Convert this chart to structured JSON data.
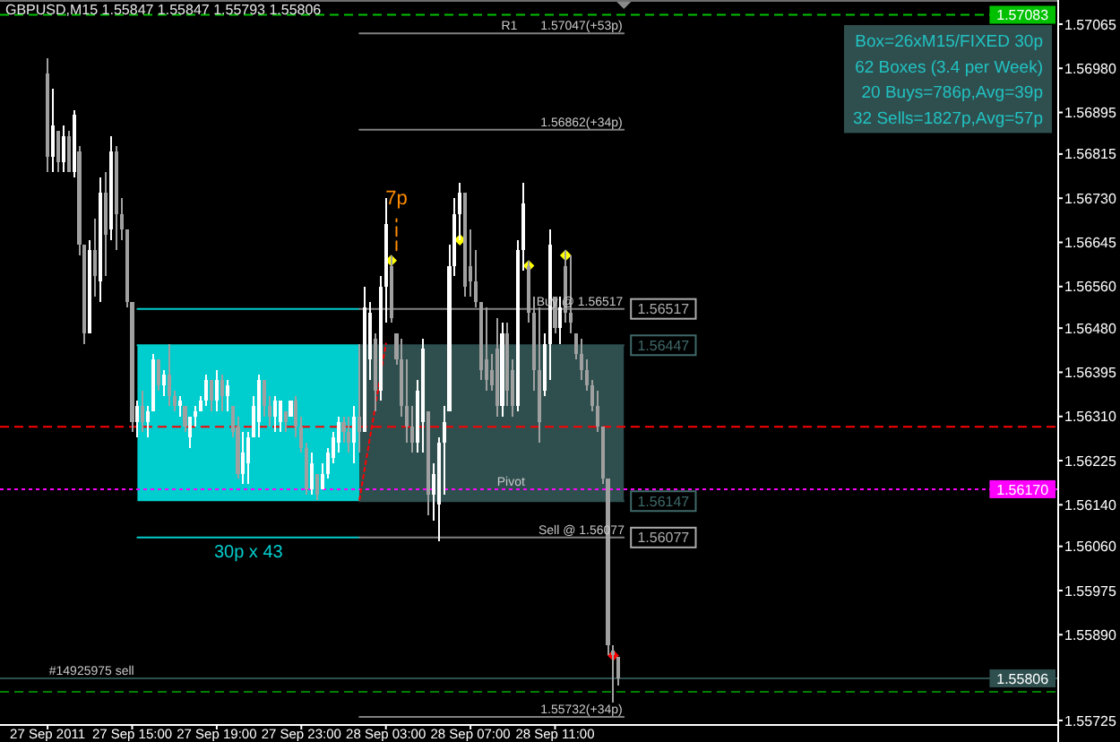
{
  "chart_data": {
    "type": "candlestick",
    "title": "GBPUSD,M15 1.55847 1.55847 1.55793 1.55806",
    "xlim": [
      "2011-09-27T08:45",
      "2011-09-29T10:45"
    ],
    "xticks": [
      {
        "value": "2011-09-27T11:00",
        "label": "27 Sep 2011"
      },
      {
        "value": "2011-09-27T15:00",
        "label": "27 Sep 15:00"
      },
      {
        "value": "2011-09-27T19:00",
        "label": "27 Sep 19:00"
      },
      {
        "value": "2011-09-27T23:00",
        "label": "27 Sep 23:00"
      },
      {
        "value": "2011-09-28T03:00",
        "label": "28 Sep 03:00"
      },
      {
        "value": "2011-09-28T07:00",
        "label": "28 Sep 07:00"
      },
      {
        "value": "2011-09-28T11:00",
        "label": "28 Sep 11:00"
      }
    ],
    "ylim": [
      1.55718,
      1.57108
    ],
    "yticks": [
      1.55725,
      {
        "value": 1.5589,
        "label": "1.55890"
      },
      1.55975,
      {
        "value": 1.5606,
        "label": "1.56060"
      },
      {
        "value": 1.5614,
        "label": "1.56140"
      },
      1.56225,
      {
        "value": 1.5631,
        "label": "1.56310"
      },
      1.56395,
      {
        "value": 1.5648,
        "label": "1.56480"
      },
      {
        "value": 1.5656,
        "label": "1.56560"
      },
      1.56645,
      {
        "value": 1.5673,
        "label": "1.56730"
      },
      1.56815,
      1.56895,
      {
        "value": 1.5698,
        "label": "1.56980"
      },
      1.57065
    ],
    "ref_lines": [
      {
        "axis": "y",
        "value": 1.57083,
        "label": "1.57083",
        "color": "#00c000",
        "line_style": "dashed"
      },
      {
        "axis": "y",
        "value": 1.5629,
        "color": "#ff0000",
        "line_style": "dashed"
      },
      {
        "axis": "y",
        "value": 1.5617,
        "label": "1.56170",
        "color": "#ff00ff",
        "line_style": "dotted"
      },
      {
        "axis": "y",
        "value": 1.55806,
        "label": "1.55806",
        "color": "#2f4f4f"
      },
      {
        "axis": "y",
        "value": 1.5578,
        "color": "#008000",
        "line_style": "dashed"
      }
    ],
    "series": [
      {
        "x": [
          "2011-09-27T11:00",
          "2011-09-27T11:15",
          "2011-09-27T11:30",
          "2011-09-27T11:45",
          "2011-09-27T12:00",
          "2011-09-27T12:15",
          "2011-09-27T12:30",
          "2011-09-27T12:45",
          "2011-09-27T13:00",
          "2011-09-27T13:15",
          "2011-09-27T13:30",
          "2011-09-27T13:45",
          "2011-09-27T14:00",
          "2011-09-27T14:15",
          "2011-09-27T14:30",
          "2011-09-27T14:45",
          "2011-09-27T15:00",
          "2011-09-27T15:15",
          "2011-09-27T15:30",
          "2011-09-27T15:45",
          "2011-09-27T16:00",
          "2011-09-27T16:15",
          "2011-09-27T16:30",
          "2011-09-27T16:45",
          "2011-09-27T17:00",
          "2011-09-27T17:15",
          "2011-09-27T17:30",
          "2011-09-27T17:45",
          "2011-09-27T18:00",
          "2011-09-27T18:15",
          "2011-09-27T18:30",
          "2011-09-27T18:45",
          "2011-09-27T19:00",
          "2011-09-27T19:15",
          "2011-09-27T19:30",
          "2011-09-27T19:45",
          "2011-09-27T20:00",
          "2011-09-27T20:15",
          "2011-09-27T20:30",
          "2011-09-27T20:45",
          "2011-09-27T21:00",
          "2011-09-27T21:15",
          "2011-09-27T21:30",
          "2011-09-27T21:45",
          "2011-09-27T22:00",
          "2011-09-27T22:15",
          "2011-09-27T22:30",
          "2011-09-27T22:45",
          "2011-09-27T23:00",
          "2011-09-27T23:15",
          "2011-09-27T23:30",
          "2011-09-27T23:45",
          "2011-09-28T00:00",
          "2011-09-28T00:15",
          "2011-09-28T00:30",
          "2011-09-28T00:45",
          "2011-09-28T01:00",
          "2011-09-28T01:15",
          "2011-09-28T01:30",
          "2011-09-28T01:45",
          "2011-09-28T02:00",
          "2011-09-28T02:15",
          "2011-09-28T02:30",
          "2011-09-28T02:45",
          "2011-09-28T03:00",
          "2011-09-28T03:15",
          "2011-09-28T03:30",
          "2011-09-28T03:45",
          "2011-09-28T04:00",
          "2011-09-28T04:15",
          "2011-09-28T04:30",
          "2011-09-28T04:45",
          "2011-09-28T05:00",
          "2011-09-28T05:15",
          "2011-09-28T05:30",
          "2011-09-28T05:45",
          "2011-09-28T06:00",
          "2011-09-28T06:15",
          "2011-09-28T06:30",
          "2011-09-28T06:45",
          "2011-09-28T07:00",
          "2011-09-28T07:15",
          "2011-09-28T07:30",
          "2011-09-28T07:45",
          "2011-09-28T08:00",
          "2011-09-28T08:15",
          "2011-09-28T08:30",
          "2011-09-28T08:45",
          "2011-09-28T09:00",
          "2011-09-28T09:15",
          "2011-09-28T09:30",
          "2011-09-28T09:45",
          "2011-09-28T10:00",
          "2011-09-28T10:15",
          "2011-09-28T10:30",
          "2011-09-28T10:45",
          "2011-09-28T11:00",
          "2011-09-28T11:15",
          "2011-09-28T11:30",
          "2011-09-28T11:45",
          "2011-09-28T12:00",
          "2011-09-28T12:15",
          "2011-09-28T12:30",
          "2011-09-28T12:45",
          "2011-09-28T13:00",
          "2011-09-28T13:15",
          "2011-09-28T13:30",
          "2011-09-28T13:45",
          "2011-09-28T14:00"
        ],
        "ohlc": [
          [
            1.5697,
            1.57,
            1.5678,
            1.5681
          ],
          [
            1.5681,
            1.5694,
            1.5678,
            1.5687
          ],
          [
            1.5686,
            1.5686,
            1.5678,
            1.568
          ],
          [
            1.568,
            1.5687,
            1.5678,
            1.5685
          ],
          [
            1.5685,
            1.5686,
            1.5678,
            1.5678
          ],
          [
            1.5678,
            1.569,
            1.5677,
            1.5689
          ],
          [
            1.5682,
            1.5683,
            1.5662,
            1.5664
          ],
          [
            1.5664,
            1.5664,
            1.5645,
            1.5647
          ],
          [
            1.5647,
            1.5665,
            1.5647,
            1.5663
          ],
          [
            1.5663,
            1.5669,
            1.5654,
            1.5658
          ],
          [
            1.5657,
            1.5677,
            1.5653,
            1.5674
          ],
          [
            1.5674,
            1.5678,
            1.5658,
            1.5666
          ],
          [
            1.5667,
            1.5685,
            1.5665,
            1.5682
          ],
          [
            1.5682,
            1.5683,
            1.5663,
            1.567
          ],
          [
            1.567,
            1.5673,
            1.5665,
            1.5667
          ],
          [
            1.5667,
            1.5667,
            1.5652,
            1.5653
          ],
          [
            1.5653,
            1.5653,
            1.5628,
            1.563
          ],
          [
            1.563,
            1.5634,
            1.5627,
            1.5633
          ],
          [
            1.5633,
            1.5636,
            1.5628,
            1.563
          ],
          [
            1.563,
            1.5633,
            1.5627,
            1.5632
          ],
          [
            1.5632,
            1.5643,
            1.5632,
            1.5642
          ],
          [
            1.5642,
            1.5642,
            1.5636,
            1.5637
          ],
          [
            1.5637,
            1.564,
            1.5635,
            1.5639
          ],
          [
            1.5639,
            1.5645,
            1.5633,
            1.5635
          ],
          [
            1.5635,
            1.5636,
            1.5632,
            1.5633
          ],
          [
            1.5633,
            1.5635,
            1.5631,
            1.5634
          ],
          [
            1.5633,
            1.5633,
            1.5628,
            1.5629
          ],
          [
            1.5627,
            1.5631,
            1.5625,
            1.5631
          ],
          [
            1.5631,
            1.5633,
            1.5629,
            1.5632
          ],
          [
            1.5632,
            1.5635,
            1.5632,
            1.5634
          ],
          [
            1.5634,
            1.5639,
            1.5633,
            1.5638
          ],
          [
            1.5638,
            1.5638,
            1.5632,
            1.5634
          ],
          [
            1.5634,
            1.564,
            1.5632,
            1.5638
          ],
          [
            1.5638,
            1.5639,
            1.5632,
            1.5635
          ],
          [
            1.5635,
            1.5638,
            1.5632,
            1.5637
          ],
          [
            1.5633,
            1.5633,
            1.5627,
            1.5628
          ],
          [
            1.5629,
            1.5631,
            1.5619,
            1.562
          ],
          [
            1.562,
            1.5628,
            1.5618,
            1.5624
          ],
          [
            1.5622,
            1.5628,
            1.5618,
            1.5627
          ],
          [
            1.5627,
            1.5635,
            1.5627,
            1.5633
          ],
          [
            1.563,
            1.5639,
            1.5627,
            1.5638
          ],
          [
            1.5638,
            1.5638,
            1.5631,
            1.5633
          ],
          [
            1.5633,
            1.5635,
            1.5629,
            1.5631
          ],
          [
            1.5631,
            1.5635,
            1.5628,
            1.5634
          ],
          [
            1.563,
            1.5634,
            1.5628,
            1.5634
          ],
          [
            1.5632,
            1.5632,
            1.5628,
            1.563
          ],
          [
            1.5631,
            1.5634,
            1.5631,
            1.5634
          ],
          [
            1.5634,
            1.5635,
            1.5627,
            1.5629
          ],
          [
            1.5629,
            1.5631,
            1.5624,
            1.5625
          ],
          [
            1.5625,
            1.5626,
            1.5616,
            1.5617
          ],
          [
            1.5617,
            1.5624,
            1.5616,
            1.5622
          ],
          [
            1.562,
            1.562,
            1.5615,
            1.5616
          ],
          [
            1.5617,
            1.5622,
            1.5617,
            1.562
          ],
          [
            1.562,
            1.5625,
            1.5619,
            1.5624
          ],
          [
            1.5623,
            1.5628,
            1.5622,
            1.5627
          ],
          [
            1.5626,
            1.5631,
            1.5624,
            1.563
          ],
          [
            1.563,
            1.5631,
            1.5626,
            1.5628
          ],
          [
            1.5628,
            1.5631,
            1.5624,
            1.5626
          ],
          [
            1.5626,
            1.5633,
            1.5622,
            1.5631
          ],
          [
            1.5631,
            1.5645,
            1.5624,
            1.5628
          ],
          [
            1.5628,
            1.5656,
            1.5628,
            1.5652
          ],
          [
            1.5642,
            1.5653,
            1.5638,
            1.5651
          ],
          [
            1.5646,
            1.5647,
            1.5632,
            1.5636
          ],
          [
            1.5636,
            1.5658,
            1.5634,
            1.5656
          ],
          [
            1.5656,
            1.5673,
            1.5649,
            1.5668
          ],
          [
            1.566,
            1.5662,
            1.5649,
            1.565
          ],
          [
            1.5647,
            1.5647,
            1.5641,
            1.5642
          ],
          [
            1.5642,
            1.5646,
            1.5631,
            1.5633
          ],
          [
            1.5633,
            1.5642,
            1.5626,
            1.5629
          ],
          [
            1.5629,
            1.5633,
            1.5624,
            1.5626
          ],
          [
            1.5626,
            1.5638,
            1.5624,
            1.5636
          ],
          [
            1.563,
            1.5646,
            1.5624,
            1.5644
          ],
          [
            1.5632,
            1.5632,
            1.5612,
            1.5616
          ],
          [
            1.5616,
            1.5622,
            1.5611,
            1.562
          ],
          [
            1.5614,
            1.5627,
            1.5607,
            1.5626
          ],
          [
            1.5626,
            1.5633,
            1.5616,
            1.563
          ],
          [
            1.5632,
            1.5664,
            1.5632,
            1.566
          ],
          [
            1.566,
            1.5673,
            1.5658,
            1.567
          ],
          [
            1.567,
            1.5676,
            1.5665,
            1.5674
          ],
          [
            1.5674,
            1.5674,
            1.5654,
            1.5656
          ],
          [
            1.566,
            1.5667,
            1.5654,
            1.5657
          ],
          [
            1.5657,
            1.5663,
            1.5652,
            1.5653
          ],
          [
            1.5653,
            1.5653,
            1.5638,
            1.564
          ],
          [
            1.5642,
            1.5652,
            1.5636,
            1.5638
          ],
          [
            1.564,
            1.5643,
            1.5636,
            1.5637
          ],
          [
            1.5644,
            1.565,
            1.5631,
            1.5633
          ],
          [
            1.5633,
            1.5649,
            1.5631,
            1.5647
          ],
          [
            1.5647,
            1.5649,
            1.5633,
            1.5636
          ],
          [
            1.564,
            1.5642,
            1.5631,
            1.5633
          ],
          [
            1.5633,
            1.5665,
            1.5632,
            1.5663
          ],
          [
            1.5663,
            1.5676,
            1.5659,
            1.5672
          ],
          [
            1.566,
            1.5661,
            1.5649,
            1.5651
          ],
          [
            1.5651,
            1.5654,
            1.5636,
            1.564
          ],
          [
            1.564,
            1.5652,
            1.5626,
            1.563
          ],
          [
            1.5636,
            1.5647,
            1.5635,
            1.5645
          ],
          [
            1.5645,
            1.5667,
            1.5638,
            1.5664
          ],
          [
            1.5654,
            1.5654,
            1.5647,
            1.5648
          ],
          [
            1.5648,
            1.5654,
            1.5645,
            1.5652
          ],
          [
            1.566,
            1.5663,
            1.5649,
            1.5651
          ],
          [
            1.5651,
            1.5662,
            1.5647,
            1.5649
          ],
          [
            1.5647,
            1.5647,
            1.5642,
            1.5643
          ],
          [
            1.5643,
            1.5646,
            1.5638,
            1.564
          ],
          [
            1.564,
            1.5642,
            1.5636,
            1.5637
          ],
          [
            1.5637,
            1.5638,
            1.5632,
            1.5633
          ],
          [
            1.5633,
            1.5636,
            1.5628,
            1.5629
          ],
          [
            1.5629,
            1.5629,
            1.5618,
            1.5619
          ],
          [
            1.5619,
            1.5619,
            1.5585,
            1.5587
          ],
          [
            1.5586,
            1.5587,
            1.5576,
            1.5585
          ],
          [
            1.55847,
            1.55847,
            1.55793,
            1.55806
          ]
        ],
        "colors": [
          "#a0a0a0",
          "#ffffff",
          "#a0a0a0",
          "#ffffff",
          "#a0a0a0",
          "#ffffff",
          "#a0a0a0",
          "#a0a0a0",
          "#ffffff",
          "#a0a0a0",
          "#ffffff",
          "#a0a0a0",
          "#ffffff",
          "#a0a0a0",
          "#a0a0a0",
          "#a0a0a0",
          "#a0a0a0",
          "#ffffff",
          "#a0a0a0",
          "#ffffff",
          "#ffffff",
          "#a0a0a0",
          "#ffffff",
          "#a0a0a0",
          "#a0a0a0",
          "#ffffff",
          "#a0a0a0",
          "#ffffff",
          "#ffffff",
          "#ffffff",
          "#ffffff",
          "#a0a0a0",
          "#ffffff",
          "#a0a0a0",
          "#ffffff",
          "#a0a0a0",
          "#a0a0a0",
          "#ffffff",
          "#ffffff",
          "#ffffff",
          "#ffffff",
          "#a0a0a0",
          "#a0a0a0",
          "#ffffff",
          "#ffffff",
          "#a0a0a0",
          "#ffffff",
          "#a0a0a0",
          "#a0a0a0",
          "#a0a0a0",
          "#ffffff",
          "#a0a0a0",
          "#ffffff",
          "#ffffff",
          "#ffffff",
          "#ffffff",
          "#a0a0a0",
          "#a0a0a0",
          "#ffffff",
          "#a0a0a0",
          "#ffffff",
          "#ffffff",
          "#a0a0a0",
          "#ffffff",
          "#ffffff",
          "#a0a0a0",
          "#a0a0a0",
          "#a0a0a0",
          "#a0a0a0",
          "#a0a0a0",
          "#ffffff",
          "#ffffff",
          "#a0a0a0",
          "#ffffff",
          "#ffffff",
          "#ffffff",
          "#ffffff",
          "#ffffff",
          "#ffffff",
          "#a0a0a0",
          "#a0a0a0",
          "#a0a0a0",
          "#a0a0a0",
          "#a0a0a0",
          "#a0a0a0",
          "#a0a0a0",
          "#ffffff",
          "#a0a0a0",
          "#a0a0a0",
          "#ffffff",
          "#ffffff",
          "#a0a0a0",
          "#a0a0a0",
          "#a0a0a0",
          "#ffffff",
          "#ffffff",
          "#a0a0a0",
          "#ffffff",
          "#a0a0a0",
          "#a0a0a0",
          "#a0a0a0",
          "#a0a0a0",
          "#a0a0a0",
          "#a0a0a0",
          "#a0a0a0",
          "#a0a0a0",
          "#a0a0a0",
          "#a0a0a0",
          "#a0a0a0"
        ]
      },
      {
        "type": "line",
        "x": [
          "2011-09-27T15:15",
          "2011-09-28T01:45"
        ],
        "values": [
          1.56447,
          1.56447
        ],
        "lower": [
          1.56147,
          1.56147
        ],
        "upper": [
          1.56447,
          1.56447
        ],
        "color": "#00cdcd"
      },
      {
        "type": "line",
        "x": [
          "2011-09-28T01:45",
          "2011-09-28T14:15"
        ],
        "values": [
          1.56447,
          1.56447
        ],
        "lower": [
          1.56147,
          1.56147
        ],
        "upper": [
          1.56447,
          1.56447
        ],
        "color": "#2f4f4f",
        "value_labels": [
          null,
          "1.56447"
        ]
      },
      {
        "type": "line",
        "x": [
          "2011-09-28T01:45",
          "2011-09-28T14:15"
        ],
        "values": [
          1.56147,
          1.56147
        ],
        "color": "#2f4f4f",
        "value_labels": [
          null,
          "1.56147"
        ]
      },
      {
        "type": "line",
        "x": [
          "2011-09-27T15:15",
          "2011-09-28T01:45"
        ],
        "values": [
          1.56517,
          1.56517
        ],
        "color": "#00cdcd"
      },
      {
        "type": "line",
        "name": "30p x 43",
        "x": [
          "2011-09-27T15:15",
          "2011-09-28T01:45"
        ],
        "values": [
          1.56077,
          1.56077
        ],
        "color": "#00cdcd"
      },
      {
        "type": "line",
        "x": [
          "2011-09-28T01:45",
          "2011-09-28T14:15"
        ],
        "values": [
          1.56517,
          1.56517
        ],
        "color": "#808080",
        "value_labels": [
          null,
          "1.56517"
        ]
      },
      {
        "type": "line",
        "x": [
          "2011-09-28T01:45",
          "2011-09-28T14:15"
        ],
        "values": [
          1.56077,
          1.56077
        ],
        "color": "#808080",
        "value_labels": [
          null,
          "1.56077"
        ]
      },
      {
        "type": "line",
        "x": [
          "2011-09-28T01:45",
          "2011-09-28T14:15"
        ],
        "values": [
          1.57047,
          1.57047
        ],
        "color": "#808080"
      },
      {
        "type": "line",
        "x": [
          "2011-09-28T01:45",
          "2011-09-28T14:15"
        ],
        "values": [
          1.56862,
          1.56862
        ],
        "color": "#808080"
      },
      {
        "type": "line",
        "x": [
          "2011-09-28T01:45",
          "2011-09-28T14:15"
        ],
        "values": [
          1.55732,
          1.55732
        ],
        "color": "#808080"
      },
      {
        "type": "line",
        "x": [
          "2011-09-28T01:45",
          "2011-09-28T03:00"
        ],
        "values": [
          1.5615,
          1.5645
        ],
        "color": "#ff0000",
        "line_style": "dotted"
      },
      {
        "type": "line",
        "name": "7p",
        "x": [
          "2011-09-28T03:30",
          "2011-09-28T03:30"
        ],
        "values": [
          1.5663,
          1.5669
        ],
        "color": "#ff8c00",
        "line_style": "dashed"
      },
      {
        "type": "scatter",
        "x": [
          "2011-09-28T03:15",
          "2011-09-28T06:30",
          "2011-09-28T09:45",
          "2011-09-28T11:30"
        ],
        "values": [
          1.5661,
          1.5665,
          1.566,
          1.5662
        ],
        "color": "#ffff00",
        "marker": "diamond"
      },
      {
        "type": "scatter",
        "x": [
          "2011-09-28T13:45"
        ],
        "values": [
          1.5585
        ],
        "color": "#ff0000",
        "marker": "diamond"
      }
    ],
    "annotations": [
      "Box=26xM15/FIXED 30p",
      "62 Boxes (3.4 per Week)",
      "20 Buys=786p,Avg=39p",
      "32 Sells=1827p,Avg=57p",
      {
        "text": "R1",
        "x": "2011-09-28T08:50",
        "y": 1.57047
      },
      {
        "text": "1.57047(+53p)",
        "x": "2011-09-28T12:15",
        "y": 1.57047
      },
      {
        "text": "1.56862(+34p)",
        "x": "2011-09-28T12:15",
        "y": 1.56862
      },
      {
        "text": "Buy @ 1.56517",
        "x": "2011-09-28T12:10",
        "y": 1.56517
      },
      {
        "text": "Pivot",
        "x": "2011-09-28T08:55",
        "y": 1.5617
      },
      {
        "text": "Sell @ 1.56077",
        "x": "2011-09-28T12:15",
        "y": 1.56077
      },
      {
        "text": "1.55732(+34p)",
        "x": "2011-09-28T12:15",
        "y": 1.55732
      },
      {
        "text": "#14925975 sell",
        "x": "2011-09-27T13:05",
        "y": 1.55806
      }
    ]
  }
}
